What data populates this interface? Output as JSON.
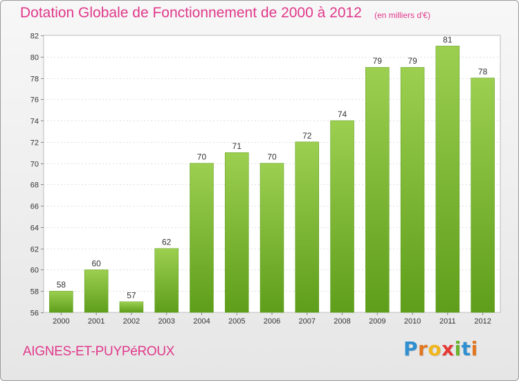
{
  "title": "Dotation Globale de Fonctionnement de 2000 à 2012",
  "subtitle": "(en milliers d'€)",
  "commune": "AIGNES-ET-PUYPéROUX",
  "brand": {
    "letters": [
      "P",
      "r",
      "o",
      "x",
      "i",
      "t",
      "i"
    ],
    "colors": [
      "#2f8fd0",
      "#e2761f",
      "#f1b51c",
      "#e53935",
      "#6ab42d",
      "#2f8fd0",
      "#e2761f"
    ]
  },
  "colors": {
    "bar_top": "#9ccf50",
    "bar_bottom": "#5e9e1a",
    "text": "#e0388a"
  },
  "chart_data": {
    "type": "bar",
    "categories": [
      "2000",
      "2001",
      "2002",
      "2003",
      "2004",
      "2005",
      "2006",
      "2007",
      "2008",
      "2009",
      "2010",
      "2011",
      "2012"
    ],
    "values": [
      58,
      60,
      57,
      62,
      70,
      71,
      70,
      72,
      74,
      79,
      79,
      81,
      78
    ],
    "ylim": [
      56,
      82
    ],
    "yticks": [
      56,
      58,
      60,
      62,
      64,
      66,
      68,
      70,
      72,
      74,
      76,
      78,
      80,
      82
    ],
    "grid": true,
    "xlabel": "",
    "ylabel": ""
  }
}
